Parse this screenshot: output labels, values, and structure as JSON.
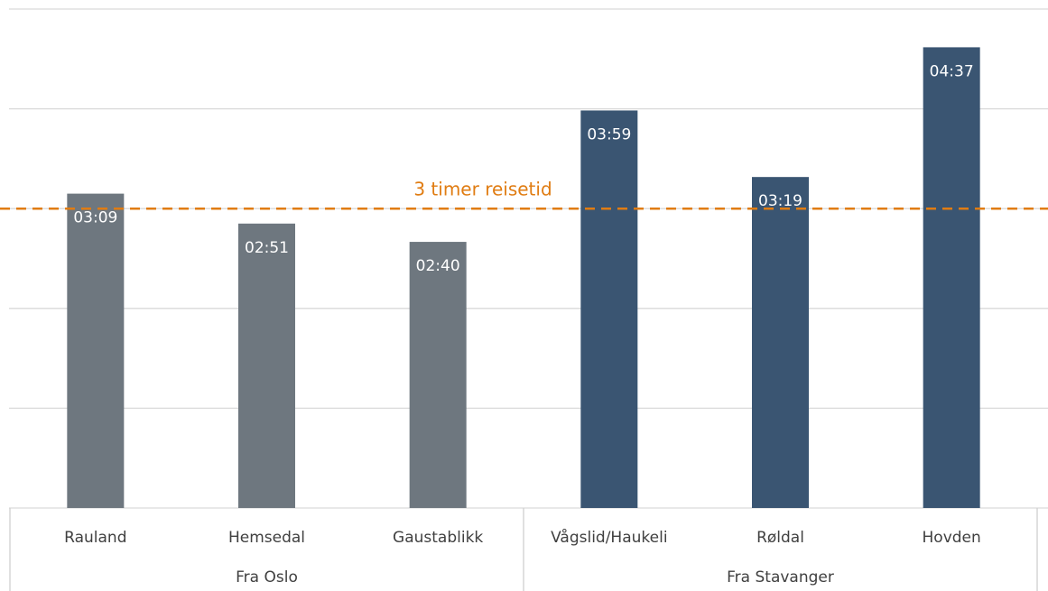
{
  "chart_data": {
    "type": "bar",
    "categories": [
      "Rauland",
      "Hemsedal",
      "Gaustablikk",
      "Vågslid/Haukeli",
      "Røldal",
      "Hovden"
    ],
    "series": [
      {
        "name": "Fra Oslo",
        "color": "#6e777f",
        "values": [
          189,
          171,
          160,
          null,
          null,
          null
        ],
        "value_labels": [
          "03:09",
          "02:51",
          "02:40",
          null,
          null,
          null
        ]
      },
      {
        "name": "Fra Stavanger",
        "color": "#3a5572",
        "values": [
          null,
          null,
          null,
          239,
          199,
          277
        ],
        "value_labels": [
          null,
          null,
          null,
          "03:59",
          "03:19",
          "04:37"
        ]
      }
    ],
    "ylim": [
      0,
      300
    ],
    "yticks": [
      0,
      60,
      120,
      180,
      240,
      300
    ],
    "grid": true,
    "reference_line": {
      "value": 180,
      "label": "3 timer reisetid",
      "color": "#e07c12"
    }
  }
}
